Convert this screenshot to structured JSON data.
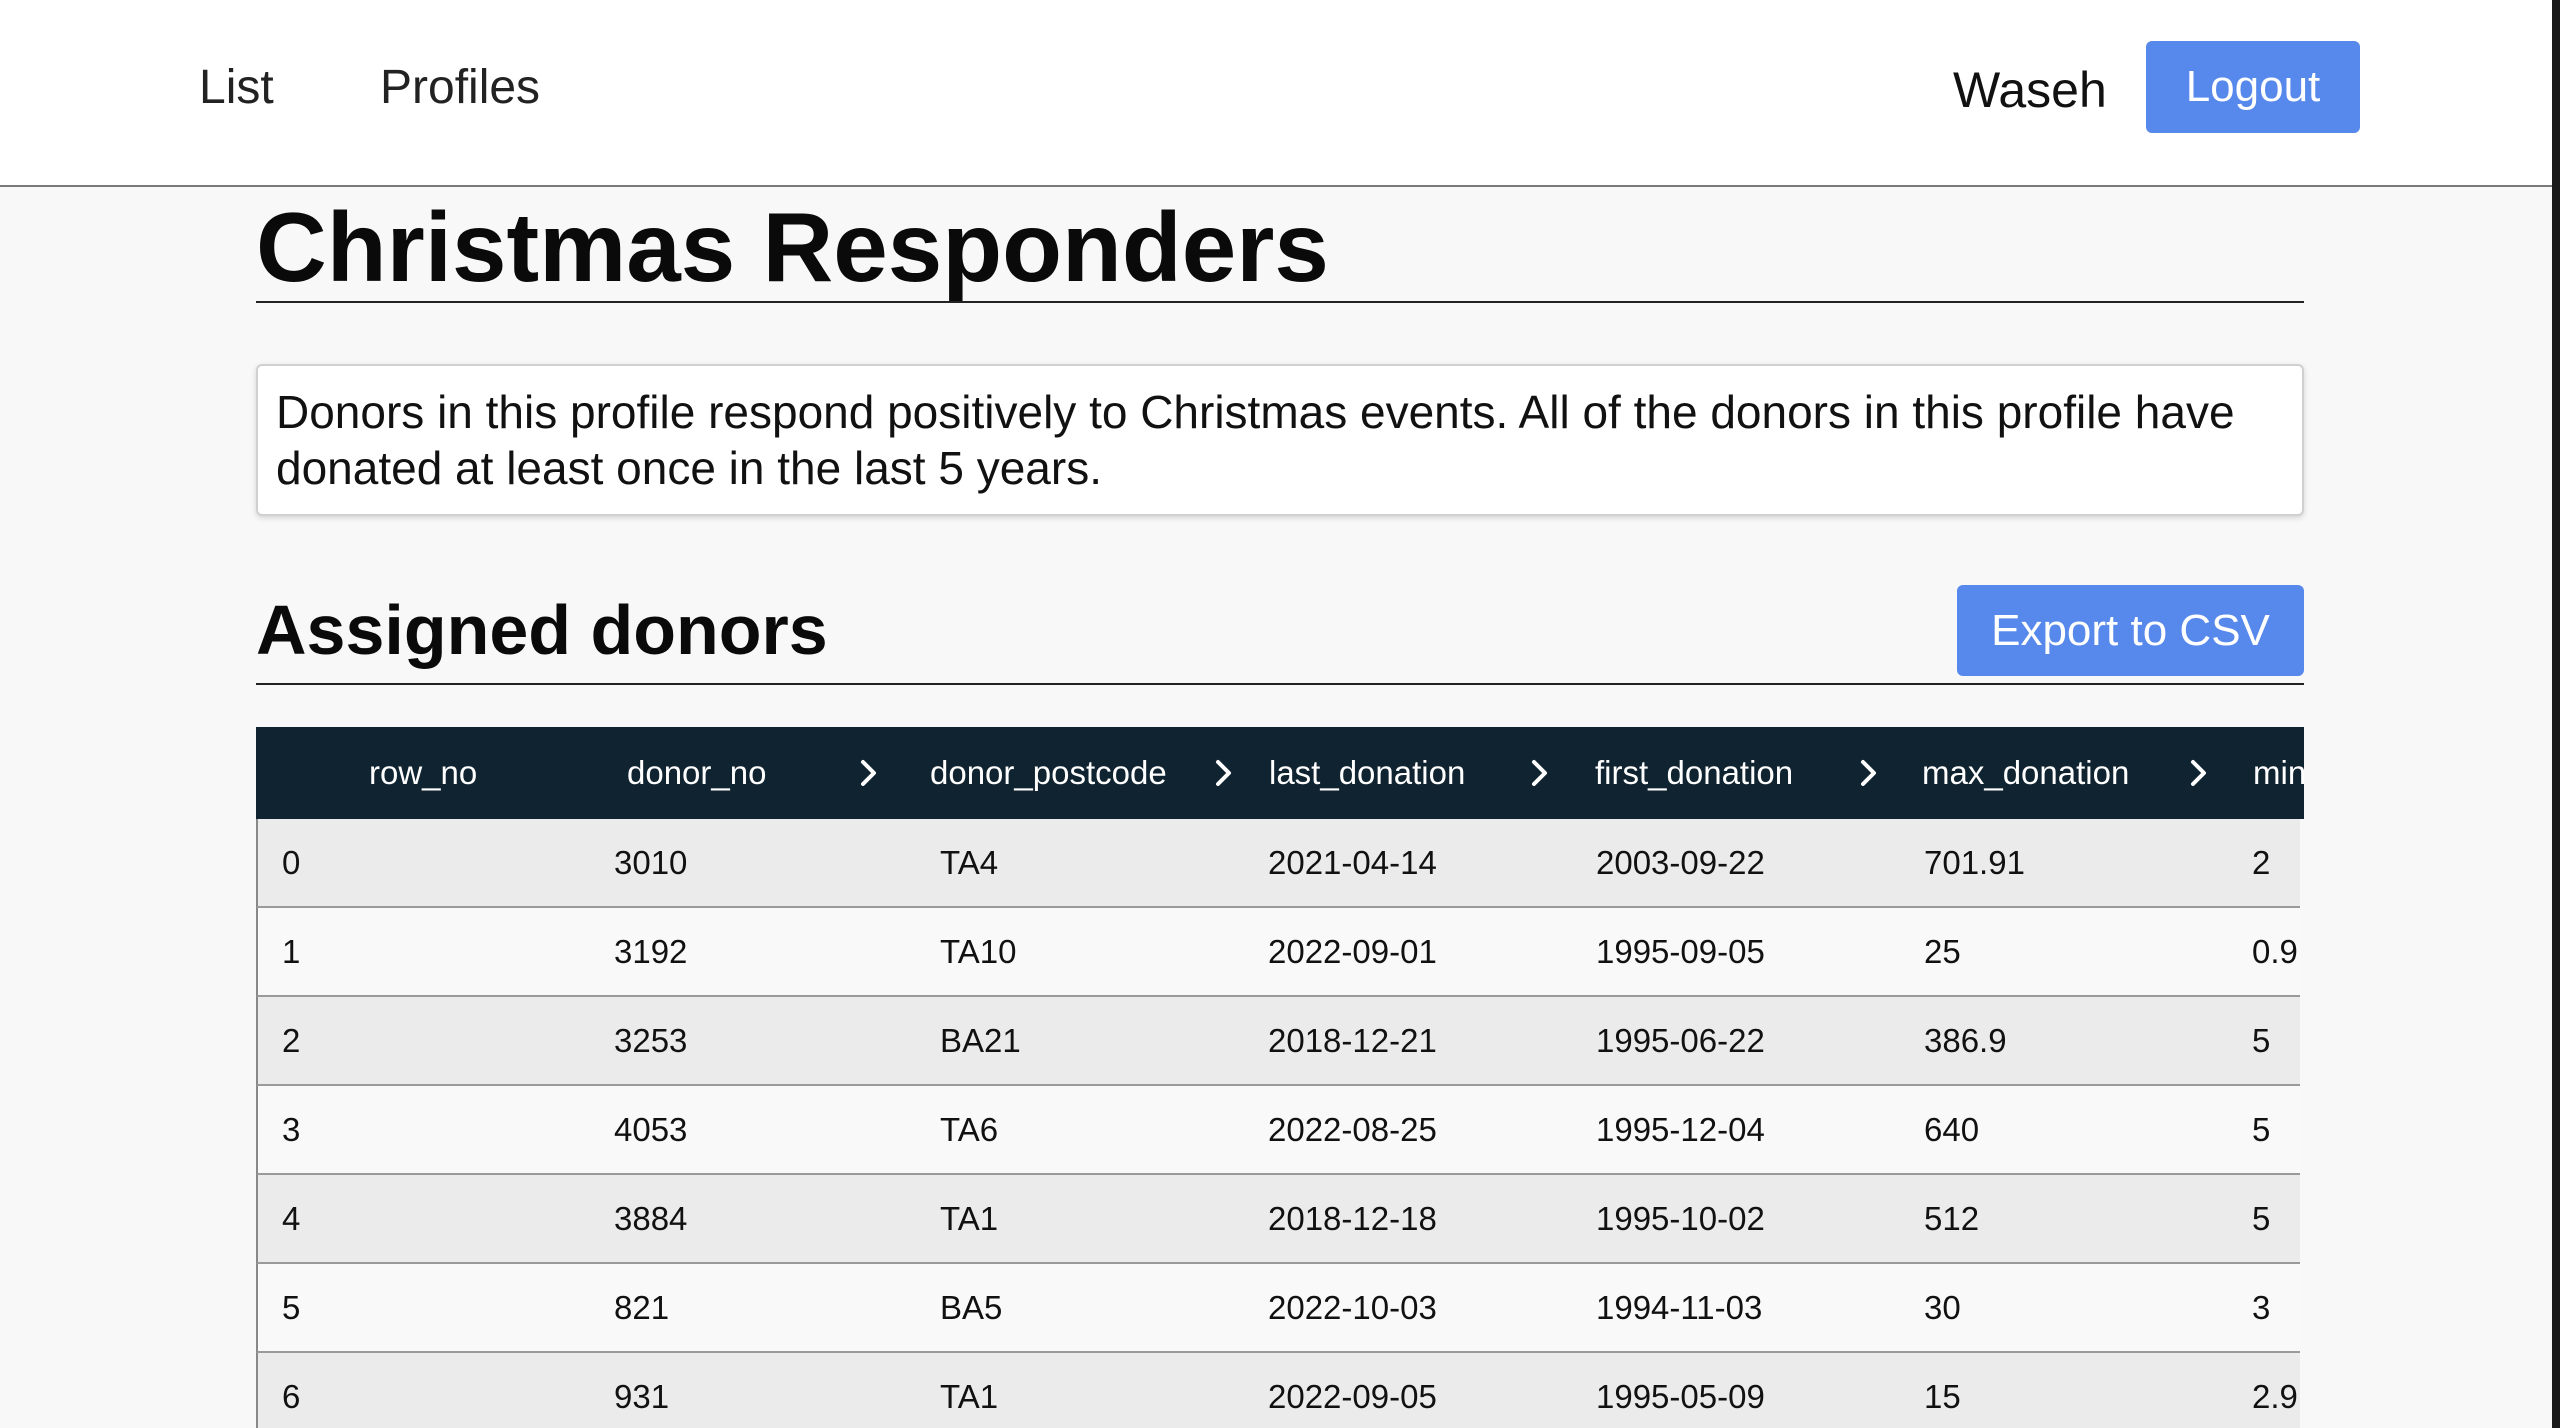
{
  "nav": {
    "list_label": "List",
    "profiles_label": "Profiles",
    "user_name": "Waseh",
    "logout_label": "Logout"
  },
  "page": {
    "title": "Christmas Responders",
    "description": "Donors in this profile respond positively to Christmas events. All of the donors in this profile have donated at least once in the last 5 years."
  },
  "section": {
    "title": "Assigned donors",
    "export_label": "Export to CSV"
  },
  "table": {
    "columns": [
      "row_no",
      "donor_no",
      "donor_postcode",
      "last_donation",
      "first_donation",
      "max_donation",
      "min"
    ],
    "rows": [
      [
        "0",
        "3010",
        "TA4",
        "2021-04-14",
        "2003-09-22",
        "701.91",
        "2"
      ],
      [
        "1",
        "3192",
        "TA10",
        "2022-09-01",
        "1995-09-05",
        "25",
        "0.9"
      ],
      [
        "2",
        "3253",
        "BA21",
        "2018-12-21",
        "1995-06-22",
        "386.9",
        "5"
      ],
      [
        "3",
        "4053",
        "TA6",
        "2022-08-25",
        "1995-12-04",
        "640",
        "5"
      ],
      [
        "4",
        "3884",
        "TA1",
        "2018-12-18",
        "1995-10-02",
        "512",
        "5"
      ],
      [
        "5",
        "821",
        "BA5",
        "2022-10-03",
        "1994-11-03",
        "30",
        "3"
      ],
      [
        "6",
        "931",
        "TA1",
        "2022-09-05",
        "1995-05-09",
        "15",
        "2.9"
      ]
    ]
  },
  "icons": {
    "sort": "chevron-right-icon"
  },
  "colors": {
    "primary_button": "#5788ec",
    "table_header": "#102330",
    "row_odd": "#ebebeb",
    "row_even": "#f9f9f9"
  }
}
